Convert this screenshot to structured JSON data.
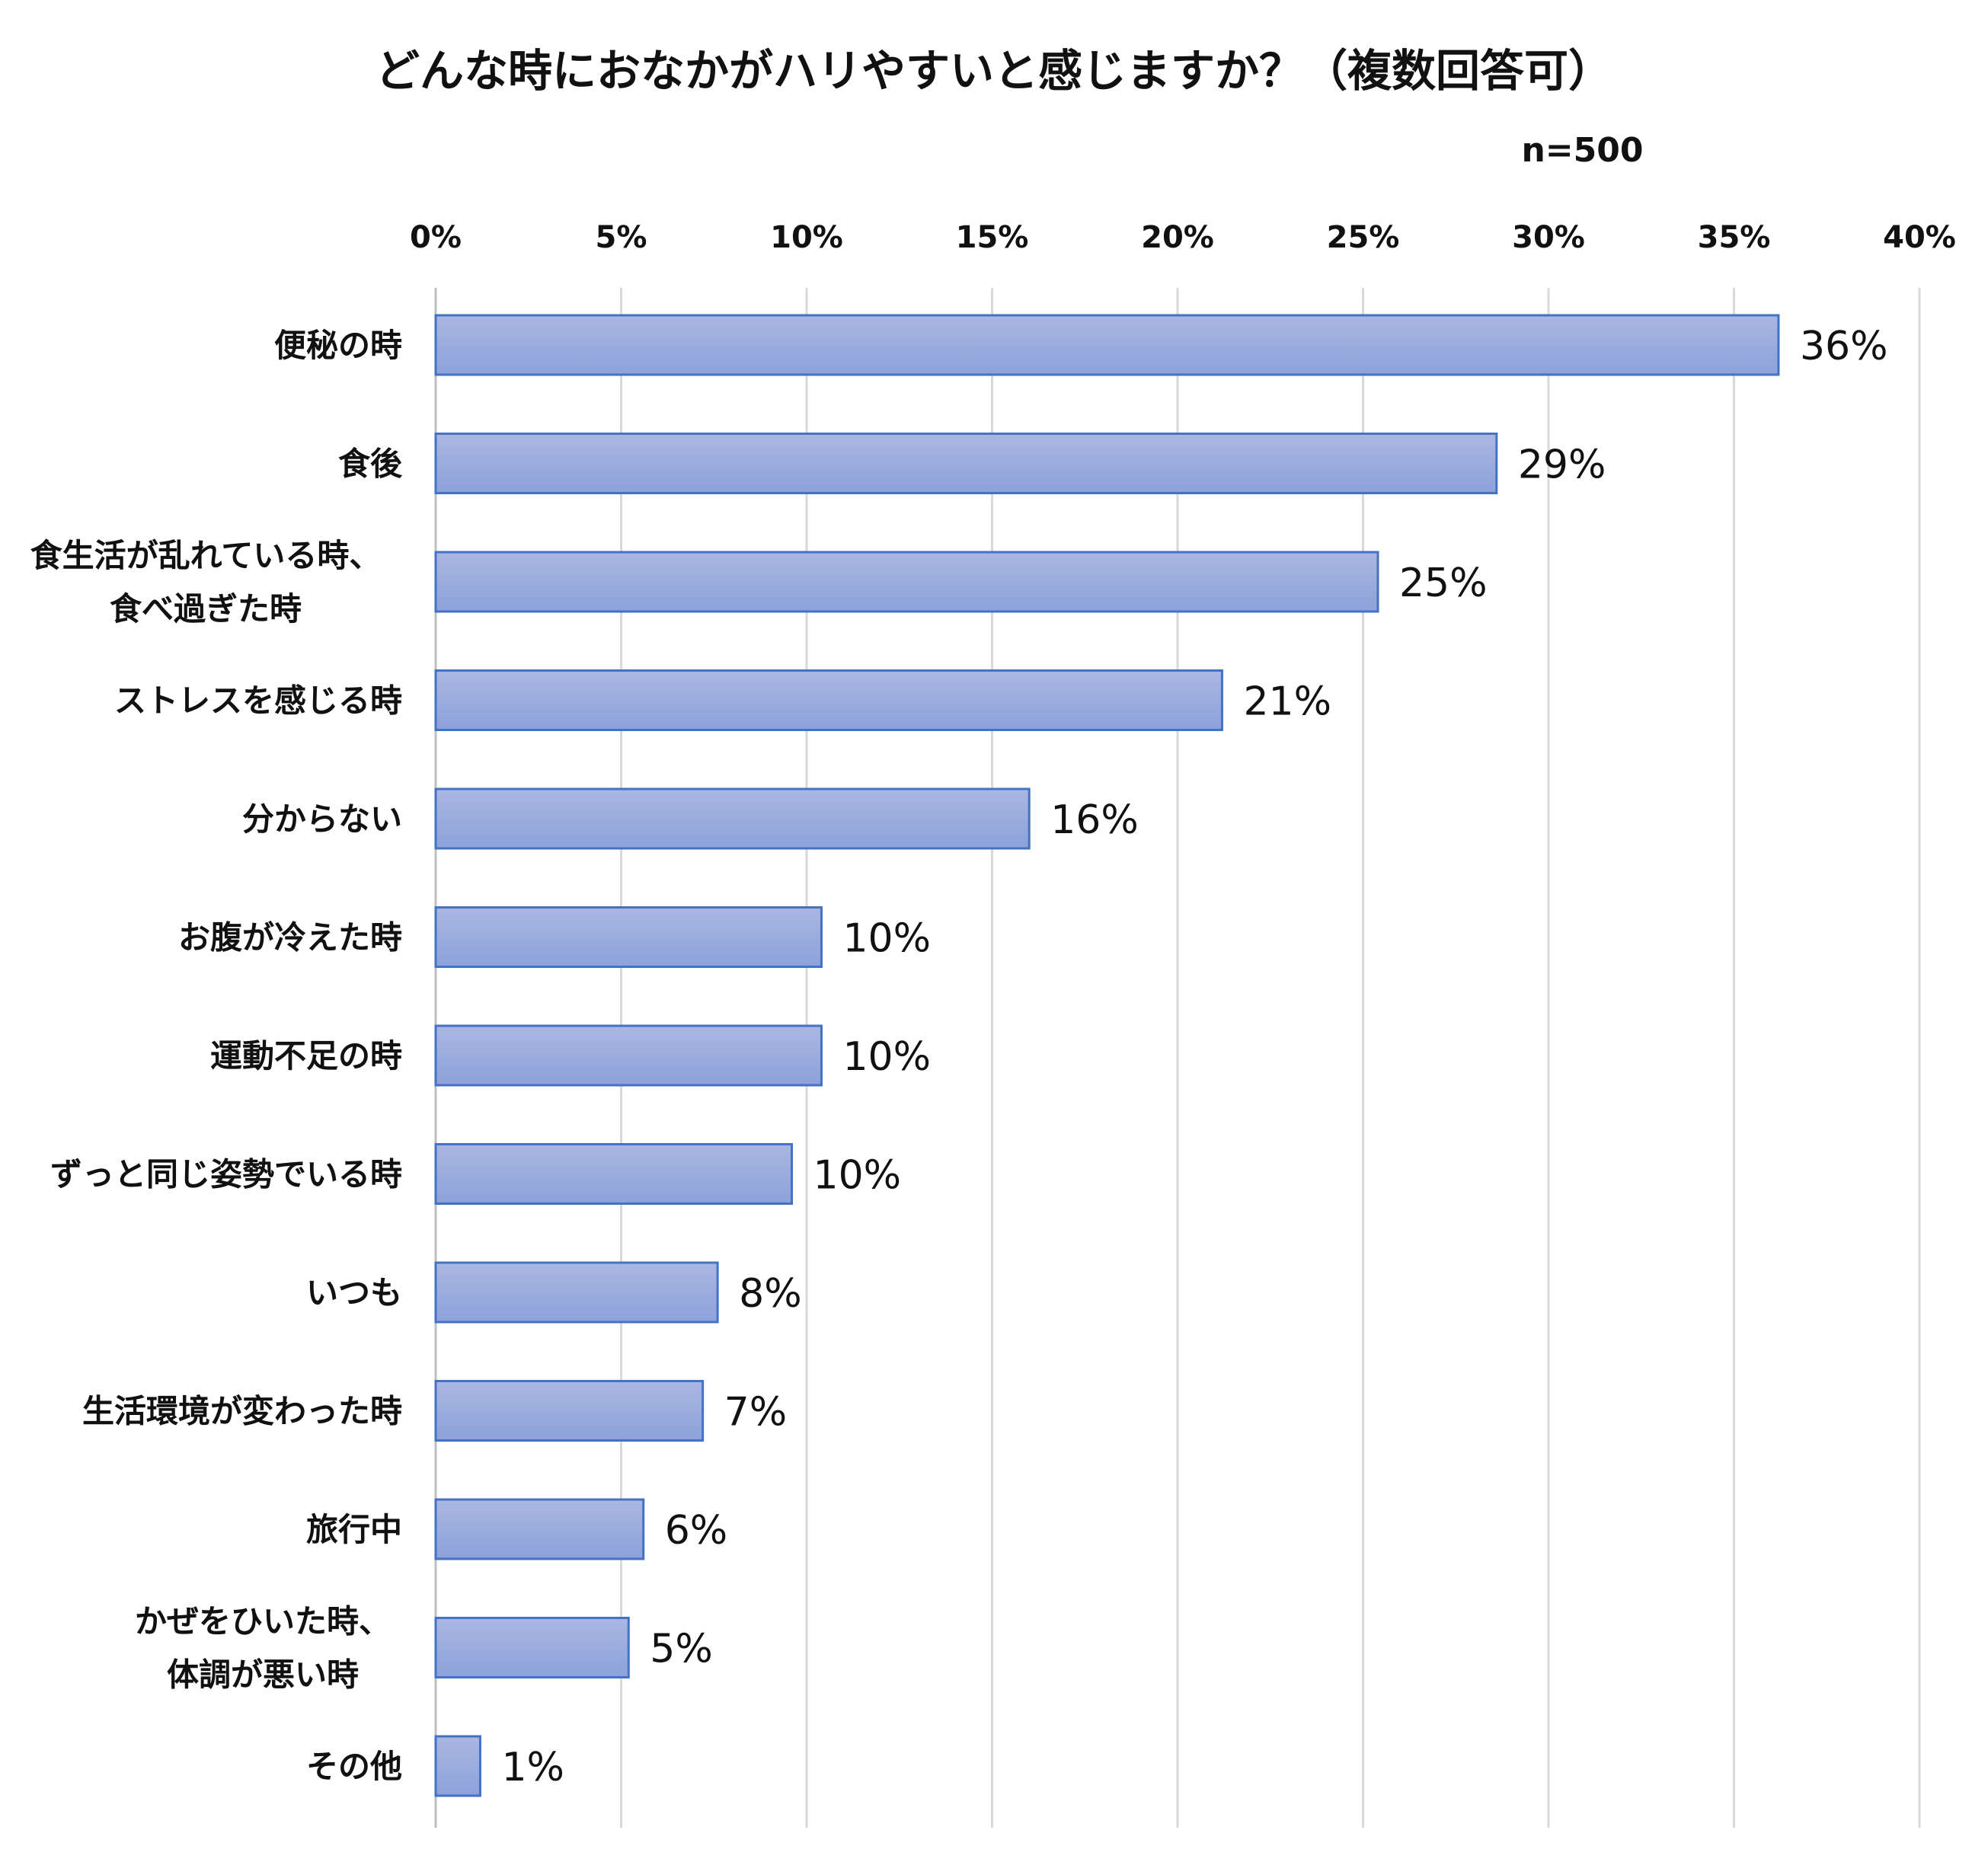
{
  "chart_data": {
    "type": "bar",
    "orientation": "horizontal",
    "title": "どんな時におなかがハリやすいと感じますか？（複数回答可）",
    "note": "n=500",
    "categories": [
      [
        "便秘の時"
      ],
      [
        "食後"
      ],
      [
        "食生活が乱れている時、",
        "食べ過ぎた時"
      ],
      [
        "ストレスを感じる時"
      ],
      [
        "分からない"
      ],
      [
        "お腹が冷えた時"
      ],
      [
        "運動不足の時"
      ],
      [
        "ずっと同じ姿勢でいる時"
      ],
      [
        "いつも"
      ],
      [
        "生活環境が変わった時"
      ],
      [
        "旅行中"
      ],
      [
        "かぜをひいた時、",
        "体調が悪い時"
      ],
      [
        "その他"
      ]
    ],
    "values": [
      36.2,
      28.6,
      25.4,
      21.2,
      16.0,
      10.4,
      10.4,
      9.6,
      7.6,
      7.2,
      5.6,
      5.2,
      1.2
    ],
    "data_labels": [
      "36%",
      "29%",
      "25%",
      "21%",
      "16%",
      "10%",
      "10%",
      "10%",
      "8%",
      "7%",
      "6%",
      "5%",
      "1%"
    ],
    "xlim": [
      0,
      40
    ],
    "xticks": [
      "0%",
      "5%",
      "10%",
      "15%",
      "20%",
      "25%",
      "30%",
      "35%",
      "40%"
    ],
    "grid": true,
    "bar_fill_top": "#aab7e2",
    "bar_fill_bottom": "#8ca2da",
    "bar_stroke": "#4472c4",
    "grid_color": "#d9d9d9"
  }
}
